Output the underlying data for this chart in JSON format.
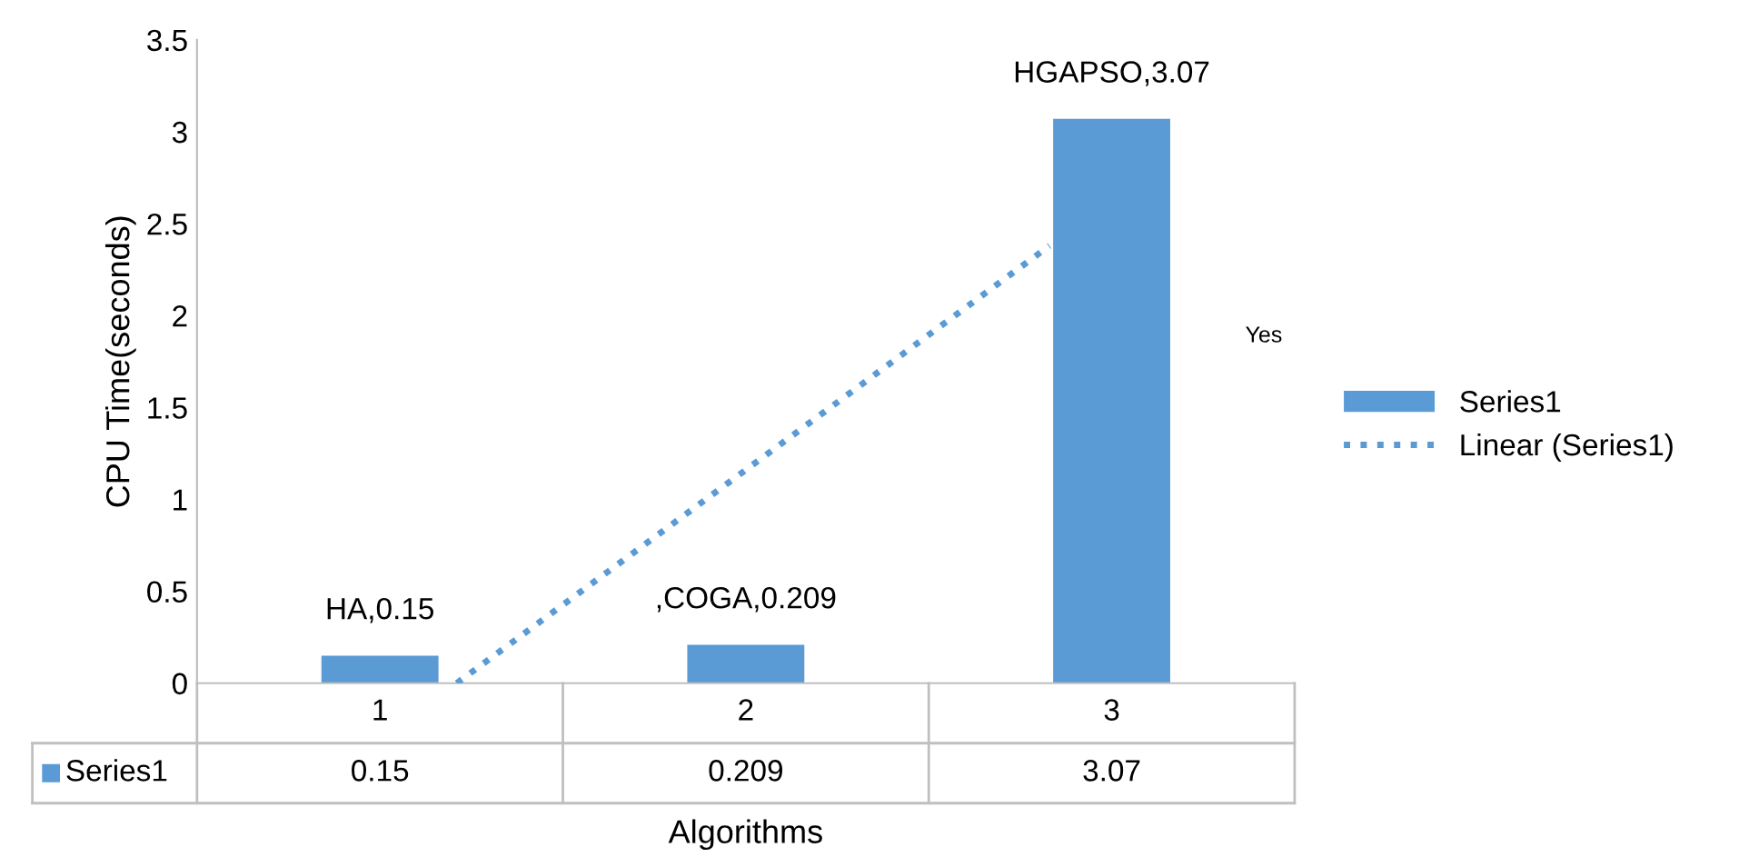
{
  "chart_data": {
    "type": "bar",
    "xlabel": "Algorithms",
    "ylabel": "CPU Time(seconds)",
    "x": [
      1,
      2,
      3
    ],
    "series": [
      {
        "name": "Series1",
        "color": "#5b9bd5",
        "values": [
          0.15,
          0.209,
          3.07
        ],
        "value_labels": [
          "HA,0.15",
          ",COGA,0.209",
          "HGAPSO,3.07"
        ]
      },
      {
        "name": "Linear (Series1)",
        "type": "line",
        "color": "#5b9bd5",
        "line_style": "dotted",
        "x": [
          1.21,
          2.83
        ],
        "values": [
          0,
          2.38
        ]
      }
    ],
    "xlim": [
      0.5,
      3.5
    ],
    "xticks": [
      1,
      2,
      3
    ],
    "ylim": [
      0,
      3.5
    ],
    "yticks": [
      0,
      0.5,
      1,
      1.5,
      2,
      2.5,
      3,
      3.5
    ],
    "annotations": [
      "Yes",
      "0.15",
      "0.209",
      "3.07"
    ],
    "grid": false,
    "legend": "right"
  }
}
